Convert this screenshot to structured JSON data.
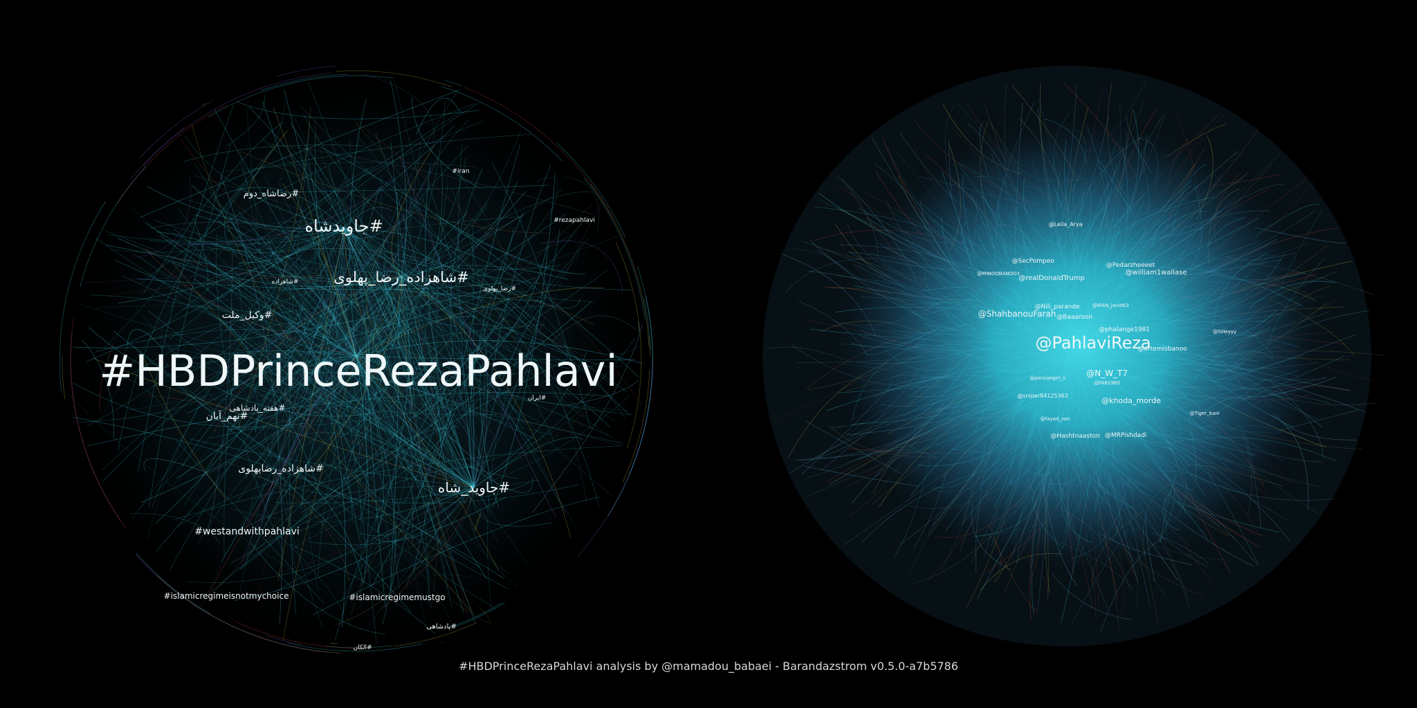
{
  "hashtag_graph": {
    "labels": [
      {
        "text": "#HBDPrinceRezaPahlavi",
        "tier": "xl"
      },
      {
        "text": "#جاویدشاه",
        "tier": "l"
      },
      {
        "text": "#شاهزاده_رضا_پهلوی",
        "tier": "l"
      },
      {
        "text": "#جاوید_شاه",
        "tier": "l"
      },
      {
        "text": "#رضاشاه_دوم",
        "tier": "m"
      },
      {
        "text": "#وکیل_ملت",
        "tier": "m"
      },
      {
        "text": "#هفته_پادشاهی",
        "tier": "s"
      },
      {
        "text": "#نهم_آبان",
        "tier": "m"
      },
      {
        "text": "#شاهزاده_رضاپهلوی",
        "tier": "m"
      },
      {
        "text": "#westandwithpahlavi",
        "tier": "m"
      },
      {
        "text": "#islamicregimeisnotmychoice",
        "tier": "sm"
      },
      {
        "text": "#islamicregimemustgo",
        "tier": "sm"
      },
      {
        "text": "#rezapahlavi",
        "tier": "xs"
      },
      {
        "text": "#iran",
        "tier": "xs"
      },
      {
        "text": "#رضا_پهلوی",
        "tier": "xs"
      },
      {
        "text": "#شاهزاده",
        "tier": "xs"
      },
      {
        "text": "#ایران",
        "tier": "xs"
      },
      {
        "text": "#پادشاهی",
        "tier": "xs"
      },
      {
        "text": "#الکان",
        "tier": "xs"
      }
    ]
  },
  "account_graph": {
    "labels": [
      {
        "text": "@PahlaviReza",
        "tier": "xl"
      },
      {
        "text": "@ShahbanouFarah",
        "tier": "m"
      },
      {
        "text": "@N_W_T7",
        "tier": "m"
      },
      {
        "text": "@khoda_morde",
        "tier": "sm"
      },
      {
        "text": "@realDonaldTrump",
        "tier": "s"
      },
      {
        "text": "@SecPompeo",
        "tier": "s"
      },
      {
        "text": "@Pedarzheeeet",
        "tier": "s"
      },
      {
        "text": "@william1wallase",
        "tier": "s"
      },
      {
        "text": "@Nili_parande",
        "tier": "s"
      },
      {
        "text": "@Baaaroon",
        "tier": "s"
      },
      {
        "text": "@phalange1981",
        "tier": "s"
      },
      {
        "text": "@artemisbanoo",
        "tier": "s"
      },
      {
        "text": "@Leila_Arya",
        "tier": "xs"
      },
      {
        "text": "@MINOOBANOO3",
        "tier": "xs"
      },
      {
        "text": "@sniper84125363",
        "tier": "xs"
      },
      {
        "text": "@Hashtnaaston",
        "tier": "s"
      },
      {
        "text": "@MRPishdadi",
        "tier": "s"
      },
      {
        "text": "@Tiger_bani",
        "tier": "xs"
      },
      {
        "text": "@Silleyyy",
        "tier": "xs"
      },
      {
        "text": "@fayad_zan",
        "tier": "xs"
      },
      {
        "text": "@persiangirl_ii",
        "tier": "xs"
      },
      {
        "text": "@IRAN_javid63",
        "tier": "xs"
      },
      {
        "text": "@FA61965",
        "tier": "xs"
      }
    ]
  },
  "footer": {
    "credit": "#HBDPrinceRezaPahlavi analysis by @mamadou_babaei - Barandazstrom v0.5.0-a7b5786"
  },
  "colors": {
    "background": "#000000",
    "edge_primary": "#3fd4e8",
    "edge_secondary": "#5fa9c8",
    "edge_accent_red": "#c9483a",
    "edge_accent_yellow": "#c9b94a",
    "edge_accent_purple": "#8a5ad0",
    "label": "#eef6f7"
  }
}
